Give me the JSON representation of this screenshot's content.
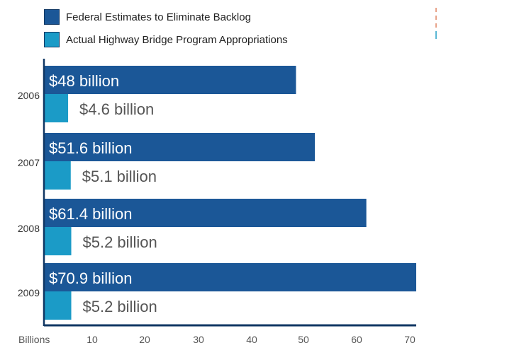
{
  "legend": {
    "items": [
      {
        "label": "Federal Estimates to Eliminate Backlog",
        "color": "#1b5797"
      },
      {
        "label": "Actual Highway Bridge Program Appropriations",
        "color": "#1b9bc7"
      }
    ]
  },
  "chart_data": {
    "type": "bar",
    "orientation": "horizontal",
    "categories": [
      "2006",
      "2007",
      "2008",
      "2009"
    ],
    "series": [
      {
        "name": "Federal Estimates to Eliminate Backlog",
        "color": "#1b5797",
        "values": [
          48,
          51.6,
          61.4,
          70.9
        ],
        "labels": [
          "$48 billion",
          "$51.6 billion",
          "$61.4 billion",
          "$70.9 billion"
        ]
      },
      {
        "name": "Actual Highway Bridge Program Appropriations",
        "color": "#1b9bc7",
        "values": [
          4.6,
          5.1,
          5.2,
          5.2
        ],
        "labels": [
          "$4.6 billion",
          "$5.1 billion",
          "$5.2 billion",
          "$5.2 billion"
        ]
      }
    ],
    "xlabel": "Billions",
    "xticks": [
      10,
      20,
      30,
      40,
      50,
      60,
      70
    ],
    "xlim": [
      0,
      70.9
    ],
    "grid": false,
    "legend_position": "top-left"
  }
}
